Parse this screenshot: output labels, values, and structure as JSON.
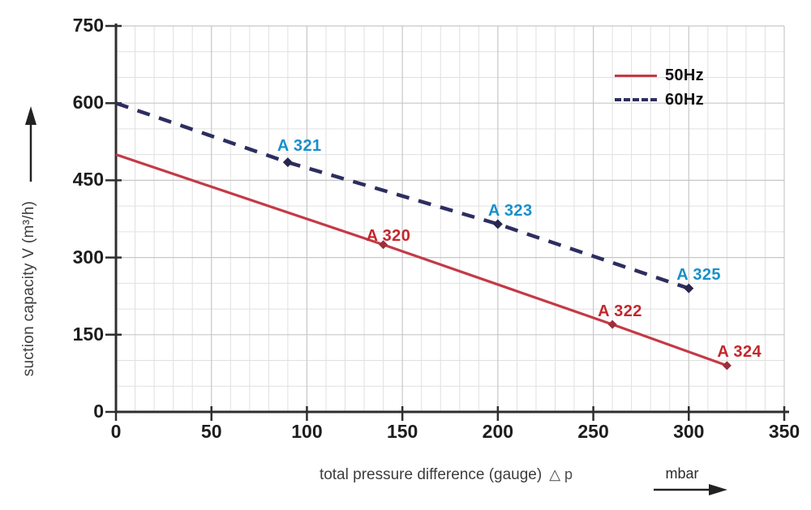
{
  "chart_data": {
    "type": "line",
    "title": "",
    "xlabel": "total pressure difference (gauge)",
    "xlabel_symbol": "△ p",
    "x_unit": "mbar",
    "ylabel": "suction capacity V (m³/h)",
    "xlim": [
      0,
      350
    ],
    "ylim": [
      0,
      750
    ],
    "x_ticks": [
      0,
      50,
      100,
      150,
      200,
      250,
      300,
      350
    ],
    "y_ticks": [
      0,
      150,
      300,
      450,
      600,
      750
    ],
    "x_minor_step": 10,
    "y_minor_step": 50,
    "grid": true,
    "legend_position": "top-right",
    "colors": {
      "axis": "#2e2e2e",
      "grid_minor": "#e0e0e0",
      "grid_major": "#c7c7c7",
      "label_50hz": "#c2282e",
      "label_60hz": "#188fcb"
    },
    "series": [
      {
        "name": "50Hz",
        "style": "solid",
        "color": "#c43a46",
        "marker_color": "#9c2f3a",
        "label_color": "#c2282e",
        "points": [
          {
            "x": 0,
            "y": 500
          },
          {
            "x": 140,
            "y": 325,
            "label": "A 320",
            "marker": true,
            "label_dx": -21,
            "label_dy": -21
          },
          {
            "x": 260,
            "y": 170,
            "label": "A 322",
            "marker": true,
            "label_dx": -18,
            "label_dy": -26
          },
          {
            "x": 320,
            "y": 90,
            "label": "A 324",
            "marker": true,
            "label_dx": -12,
            "label_dy": -27
          }
        ]
      },
      {
        "name": "60Hz",
        "style": "dashed",
        "color": "#2d2e5f",
        "marker_color": "#26264f",
        "label_color": "#188fcb",
        "points": [
          {
            "x": 0,
            "y": 600
          },
          {
            "x": 90,
            "y": 485,
            "label": "A 321",
            "marker": true,
            "label_dx": -13,
            "label_dy": -30
          },
          {
            "x": 200,
            "y": 365,
            "label": "A 323",
            "marker": true,
            "label_dx": -12,
            "label_dy": -26
          },
          {
            "x": 300,
            "y": 240,
            "label": "A 325",
            "marker": true,
            "label_dx": -15,
            "label_dy": -27
          }
        ]
      }
    ]
  }
}
